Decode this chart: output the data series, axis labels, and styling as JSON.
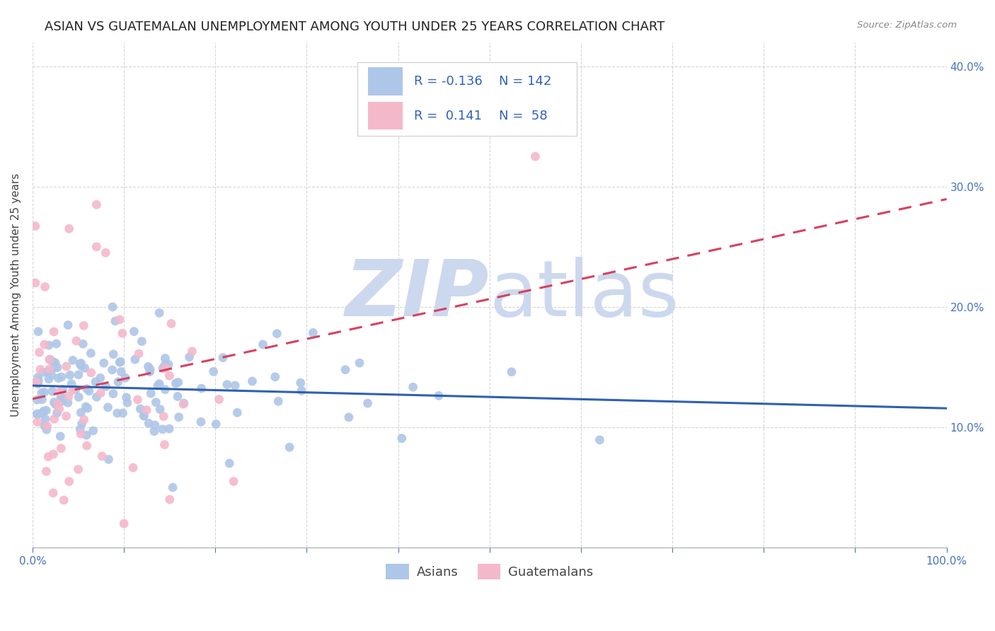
{
  "title": "ASIAN VS GUATEMALAN UNEMPLOYMENT AMONG YOUTH UNDER 25 YEARS CORRELATION CHART",
  "source": "Source: ZipAtlas.com",
  "ylabel": "Unemployment Among Youth under 25 years",
  "xlim": [
    0.0,
    1.0
  ],
  "ylim": [
    0.0,
    0.42
  ],
  "asian_R": -0.136,
  "asian_N": 142,
  "guatemalan_R": 0.141,
  "guatemalan_N": 58,
  "asian_color": "#aec6e8",
  "guatemalan_color": "#f4b8cb",
  "asian_line_color": "#3060b0",
  "guatemalan_line_color": "#d84060",
  "legend_label_asian": "Asians",
  "legend_label_guatemalan": "Guatemalans",
  "watermark_zip": "ZIP",
  "watermark_atlas": "atlas",
  "watermark_color_zip": "#c8d8f0",
  "watermark_color_atlas": "#c8d8f0",
  "background_color": "#ffffff",
  "grid_color": "#cccccc",
  "title_fontsize": 13,
  "axis_label_fontsize": 11,
  "tick_fontsize": 11,
  "legend_fontsize": 13,
  "right_tick_color": "#4472c4",
  "bottom_tick_color": "#4472c4",
  "legend_text_color": "#3060c0"
}
